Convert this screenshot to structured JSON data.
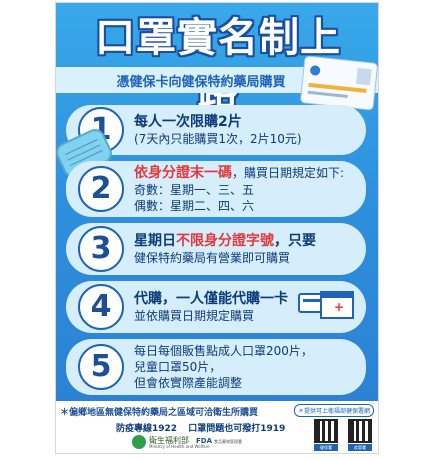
{
  "title": "口罩實名制上路",
  "subtitle": "憑健保卡向健保特約藥局購買",
  "items": [
    {
      "number": "1",
      "line1": "每人一次限購2片",
      "line2": "(7天內只能購買1次，2片10元)"
    },
    {
      "number": "2",
      "line1_red": "依身分證末一碼",
      "line1_rest": "，購買日期規定如下:",
      "line2": "奇數：星期一、三、五",
      "line3": "偶數：星期二、四、六"
    },
    {
      "number": "3",
      "line1_a": "星期日",
      "line1_red": "不限身分證字號",
      "line1_b": "，只要",
      "line2": "健保特約藥局有營業即可購買"
    },
    {
      "number": "4",
      "line1": "代購，一人僅能代購一卡",
      "line2": "並依購買日期規定購買"
    },
    {
      "number": "5",
      "line1": "每日每個販售點成人口罩200片，",
      "line2": "兒童口罩50片，",
      "line3": "但會依實際產能調整"
    }
  ],
  "footer": {
    "notice": "＊偏鄉地區無健保特約藥局之區域可洽衛生所購買",
    "badge": "＊提供可上衛福部健保署網",
    "hotline1": "防疫專線1922",
    "hotline2": "口罩問題也可撥打1919",
    "ministry_name": "衛生福利部",
    "ministry_en": "Ministry of Health and Welfare",
    "fda": "FDA",
    "fda_sub": "食品藥物管理署",
    "qr_label1": "健保署",
    "qr_label2": "疾管署"
  },
  "icons": [
    "mask-icon",
    "nhi-card-icon",
    "health-card-icon",
    "pharmacy-icon",
    "qr-code-icon"
  ],
  "colors": {
    "background": "#2e8fdc",
    "item_bg": "#d6edfb",
    "accent_red": "#e03a3a",
    "text_dark": "#0d3c7a"
  }
}
